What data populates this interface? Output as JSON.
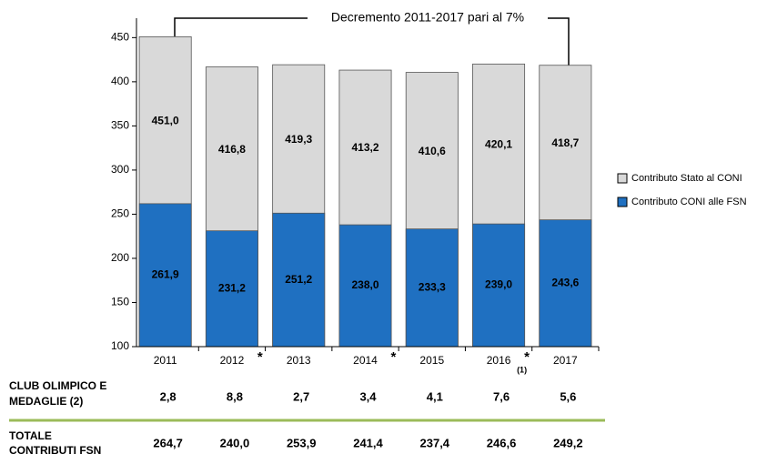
{
  "chart_data": {
    "type": "overlapping-bar",
    "annotation": "Decremento 2011-2017 pari al 7%",
    "categories": [
      "2011",
      "2012",
      "2013",
      "2014",
      "2015",
      "2016",
      "2017"
    ],
    "category_marks": [
      null,
      "*",
      null,
      "*",
      null,
      "*",
      null
    ],
    "category_subnotes": [
      null,
      null,
      null,
      null,
      null,
      "(1)",
      null
    ],
    "series": [
      {
        "name": "Contributo Stato al CONI",
        "color": "#d9d9d9",
        "values": [
          451.0,
          416.8,
          419.3,
          413.2,
          410.6,
          420.1,
          418.7
        ],
        "value_labels": [
          "451,0",
          "416,8",
          "419,3",
          "413,2",
          "410,6",
          "420,1",
          "418,7"
        ]
      },
      {
        "name": "Contributo CONI alle FSN",
        "color": "#1f70c1",
        "values": [
          261.9,
          231.2,
          251.2,
          238.0,
          233.3,
          239.0,
          243.6
        ],
        "value_labels": [
          "261,9",
          "231,2",
          "251,2",
          "238,0",
          "233,3",
          "239,0",
          "243,6"
        ]
      }
    ],
    "ylim": [
      100,
      472
    ],
    "yticks": [
      100,
      150,
      200,
      250,
      300,
      350,
      400,
      450
    ],
    "legend": "right"
  },
  "table": {
    "rows": [
      {
        "label": [
          "CLUB OLIMPICO E",
          "MEDAGLIE (2)"
        ],
        "color": "#7030a0",
        "cells": [
          "2,8",
          "8,8",
          "2,7",
          "3,4",
          "4,1",
          "7,6",
          "5,6"
        ]
      },
      {
        "label": [
          "TOTALE",
          "CONTRIBUTI FSN"
        ],
        "color": "#7030a0",
        "cells": [
          "264,7",
          "240,0",
          "253,9",
          "241,4",
          "237,4",
          "246,6",
          "249,2"
        ]
      }
    ]
  }
}
